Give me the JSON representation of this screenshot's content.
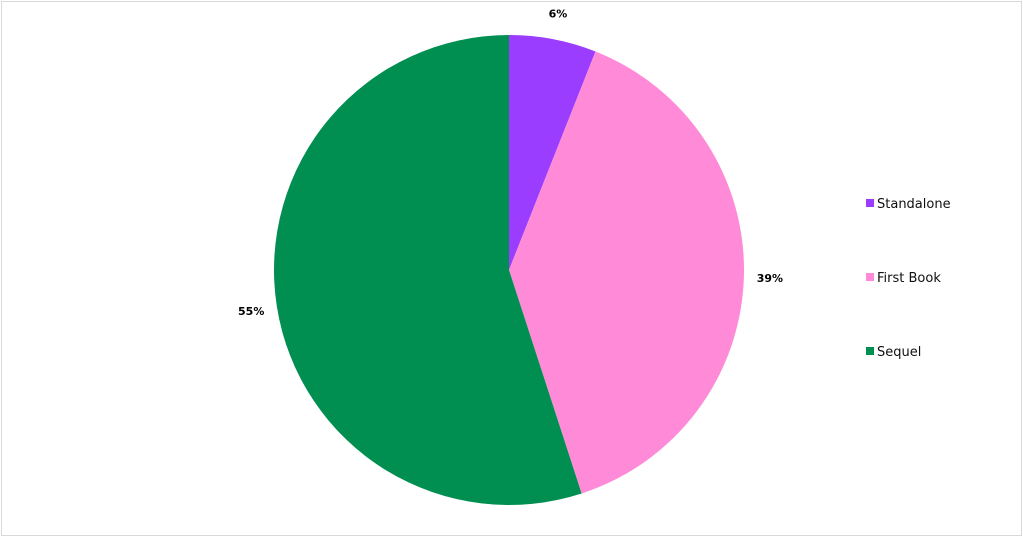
{
  "chart_data": {
    "type": "pie",
    "title": "",
    "categories": [
      "Standalone",
      "First Book",
      "Sequel"
    ],
    "values": [
      6,
      39,
      55
    ],
    "data_labels": [
      "6%",
      "39%",
      "55%"
    ],
    "colors": [
      "#9b3dff",
      "#ff8ad8",
      "#008f50"
    ],
    "start_angle": "12 o'clock, clockwise",
    "legend_position": "right"
  }
}
